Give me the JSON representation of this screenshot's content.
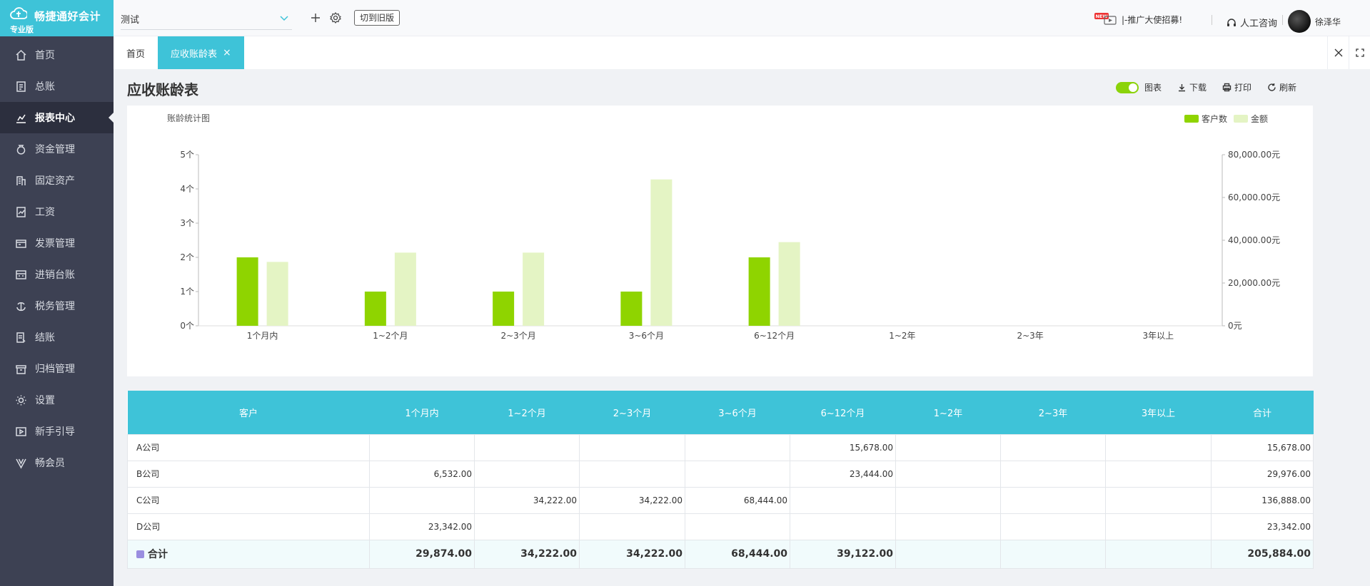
{
  "app": {
    "name": "畅捷通好会计",
    "edition": "专业版"
  },
  "sidebar": {
    "items": [
      {
        "label": "首页",
        "icon": "home-icon"
      },
      {
        "label": "总账",
        "icon": "ledger-icon"
      },
      {
        "label": "报表中心",
        "icon": "report-chart-icon",
        "active": true
      },
      {
        "label": "资金管理",
        "icon": "money-bag-icon"
      },
      {
        "label": "固定资产",
        "icon": "building-icon"
      },
      {
        "label": "工资",
        "icon": "salary-icon"
      },
      {
        "label": "发票管理",
        "icon": "invoice-icon"
      },
      {
        "label": "进销台账",
        "icon": "inventory-icon"
      },
      {
        "label": "税务管理",
        "icon": "tax-icon"
      },
      {
        "label": "结账",
        "icon": "closing-icon"
      },
      {
        "label": "归档管理",
        "icon": "archive-icon"
      },
      {
        "label": "设置",
        "icon": "gear-icon"
      },
      {
        "label": "新手引导",
        "icon": "guide-icon"
      },
      {
        "label": "畅会员",
        "icon": "member-icon"
      }
    ]
  },
  "topbar": {
    "account_book": "测试",
    "old_version_label": "切到旧版",
    "promo_badge": "NEW",
    "promo_text": "|-推广大使招募!",
    "support_label": "人工咨询",
    "user_name": "徐泽华"
  },
  "tabs": [
    {
      "label": "首页",
      "active": false
    },
    {
      "label": "应收账龄表",
      "active": true,
      "close": "×"
    }
  ],
  "page": {
    "title": "应收账龄表",
    "actions": {
      "chart_toggle": "图表",
      "download": "下载",
      "print": "打印",
      "refresh": "刷新"
    }
  },
  "chart_data": {
    "type": "bar",
    "title": "账龄统计图",
    "categories": [
      "1个月内",
      "1~2个月",
      "2~3个月",
      "3~6个月",
      "6~12个月",
      "1~2年",
      "2~3年",
      "3年以上"
    ],
    "series": [
      {
        "name": "客户数",
        "axis": "left",
        "color": "#8fd400",
        "values": [
          2,
          1,
          1,
          1,
          2,
          0,
          0,
          0
        ]
      },
      {
        "name": "金额",
        "axis": "right",
        "color": "#e4f4c4",
        "values": [
          29874,
          34222,
          34222,
          68444,
          39122,
          0,
          0,
          0
        ]
      }
    ],
    "yleft": {
      "ticks": [
        "0个",
        "1个",
        "2个",
        "3个",
        "4个",
        "5个"
      ],
      "lim": [
        0,
        5
      ]
    },
    "yright": {
      "ticks": [
        "0元",
        "20,000.00元",
        "40,000.00元",
        "60,000.00元",
        "80,000.00元"
      ],
      "lim": [
        0,
        80000
      ]
    },
    "legend": "top-right",
    "grid": false
  },
  "table": {
    "headers": [
      "客户",
      "1个月内",
      "1~2个月",
      "2~3个月",
      "3~6个月",
      "6~12个月",
      "1~2年",
      "2~3年",
      "3年以上",
      "合计"
    ],
    "rows": [
      [
        "A公司",
        "",
        "",
        "",
        "",
        "15,678.00",
        "",
        "",
        "",
        "15,678.00"
      ],
      [
        "B公司",
        "6,532.00",
        "",
        "",
        "",
        "23,444.00",
        "",
        "",
        "",
        "29,976.00"
      ],
      [
        "C公司",
        "",
        "34,222.00",
        "34,222.00",
        "68,444.00",
        "",
        "",
        "",
        "",
        "136,888.00"
      ],
      [
        "D公司",
        "23,342.00",
        "",
        "",
        "",
        "",
        "",
        "",
        "",
        "23,342.00"
      ]
    ],
    "total": [
      "合计",
      "29,874.00",
      "34,222.00",
      "34,222.00",
      "68,444.00",
      "39,122.00",
      "",
      "",
      "",
      "205,884.00"
    ]
  }
}
